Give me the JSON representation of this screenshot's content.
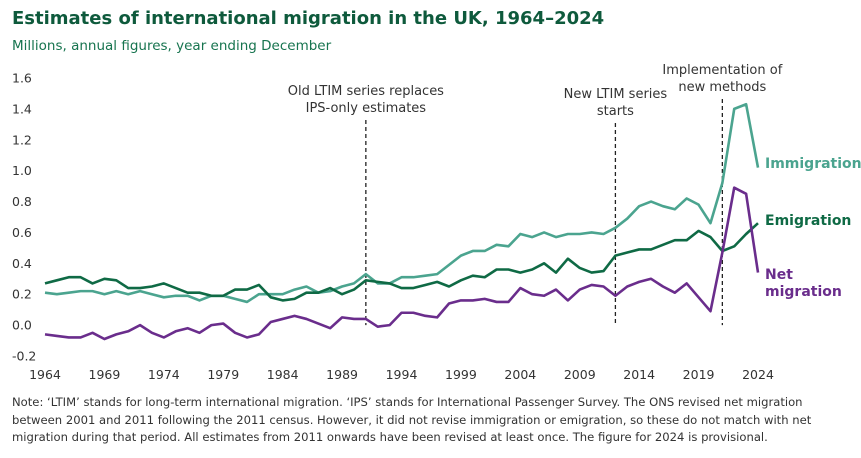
{
  "chart_data": {
    "type": "line",
    "title": "Estimates of international migration in the UK, 1964–2024",
    "subtitle": "Millions, annual figures, year ending December",
    "x": [
      1964,
      1965,
      1966,
      1967,
      1968,
      1969,
      1970,
      1971,
      1972,
      1973,
      1974,
      1975,
      1976,
      1977,
      1978,
      1979,
      1980,
      1981,
      1982,
      1983,
      1984,
      1985,
      1986,
      1987,
      1988,
      1989,
      1990,
      1991,
      1992,
      1993,
      1994,
      1995,
      1996,
      1997,
      1998,
      1999,
      2000,
      2001,
      2002,
      2003,
      2004,
      2005,
      2006,
      2007,
      2008,
      2009,
      2010,
      2011,
      2012,
      2013,
      2014,
      2015,
      2016,
      2017,
      2018,
      2019,
      2020,
      2021,
      2022,
      2023,
      2024
    ],
    "xlim": [
      1964,
      2024
    ],
    "xticks": [
      1964,
      1969,
      1974,
      1979,
      1984,
      1989,
      1994,
      1999,
      2004,
      2009,
      2014,
      2019,
      2024
    ],
    "ylim": [
      -0.2,
      1.6
    ],
    "yticks": [
      1.6,
      1.4,
      1.2,
      {
        "value": 1,
        "label": "1.0"
      },
      0.8,
      0.6,
      0.4,
      0.2,
      {
        "value": 0,
        "label": "0.0"
      },
      -0.2
    ],
    "series": [
      {
        "name": "Immigration",
        "color": "#4ba48f",
        "values": [
          0.21,
          0.2,
          0.21,
          0.22,
          0.22,
          0.2,
          0.22,
          0.2,
          0.22,
          0.2,
          0.18,
          0.19,
          0.19,
          0.16,
          0.19,
          0.19,
          0.17,
          0.15,
          0.2,
          0.2,
          0.2,
          0.23,
          0.25,
          0.21,
          0.22,
          0.25,
          0.27,
          0.33,
          0.27,
          0.27,
          0.31,
          0.31,
          0.32,
          0.33,
          0.39,
          0.45,
          0.48,
          0.48,
          0.52,
          0.51,
          0.59,
          0.57,
          0.6,
          0.57,
          0.59,
          0.59,
          0.6,
          0.59,
          0.63,
          0.69,
          0.77,
          0.8,
          0.77,
          0.75,
          0.82,
          0.78,
          0.66,
          0.92,
          1.4,
          1.43,
          1.02
        ]
      },
      {
        "name": "Emigration",
        "color": "#0f6a45",
        "values": [
          0.27,
          0.29,
          0.31,
          0.31,
          0.27,
          0.3,
          0.29,
          0.24,
          0.24,
          0.25,
          0.27,
          0.24,
          0.21,
          0.21,
          0.19,
          0.19,
          0.23,
          0.23,
          0.26,
          0.18,
          0.16,
          0.17,
          0.21,
          0.21,
          0.24,
          0.2,
          0.23,
          0.29,
          0.28,
          0.27,
          0.24,
          0.24,
          0.26,
          0.28,
          0.25,
          0.29,
          0.32,
          0.31,
          0.36,
          0.36,
          0.34,
          0.36,
          0.4,
          0.34,
          0.43,
          0.37,
          0.34,
          0.35,
          0.45,
          0.47,
          0.49,
          0.49,
          0.52,
          0.55,
          0.55,
          0.61,
          0.57,
          0.48,
          0.51,
          0.59,
          0.66
        ]
      },
      {
        "name": "Net migration",
        "color": "#6a2d8c",
        "values": [
          -0.06,
          -0.07,
          -0.08,
          -0.08,
          -0.05,
          -0.09,
          -0.06,
          -0.04,
          0.0,
          -0.05,
          -0.08,
          -0.04,
          -0.02,
          -0.05,
          0.0,
          0.01,
          -0.05,
          -0.08,
          -0.06,
          0.02,
          0.04,
          0.06,
          0.04,
          0.01,
          -0.02,
          0.05,
          0.04,
          0.04,
          -0.01,
          0.0,
          0.08,
          0.08,
          0.06,
          0.05,
          0.14,
          0.16,
          0.16,
          0.17,
          0.15,
          0.15,
          0.24,
          0.2,
          0.19,
          0.23,
          0.16,
          0.23,
          0.26,
          0.25,
          0.19,
          0.25,
          0.28,
          0.3,
          0.25,
          0.21,
          0.27,
          0.18,
          0.09,
          0.47,
          0.89,
          0.85,
          0.34
        ]
      }
    ],
    "annotations": [
      {
        "x": 1991,
        "lines": [
          "Old LTIM series replaces",
          "IPS-only estimates"
        ]
      },
      {
        "x": 2012,
        "lines": [
          "New LTIM series",
          "starts"
        ]
      },
      {
        "x": 2021,
        "lines": [
          "Implementation of",
          "new methods"
        ]
      }
    ],
    "note": "Note: ‘LTIM’ stands for long-term international migration. ‘IPS’ stands for International Passenger Survey. The ONS revised net migration between 2001 and 2011 following the 2011 census. However, it did not revise immigration or emigration, so these do not match with net migration during that period. All estimates from 2011 onwards have been revised at least once. The figure for 2024 is provisional."
  }
}
